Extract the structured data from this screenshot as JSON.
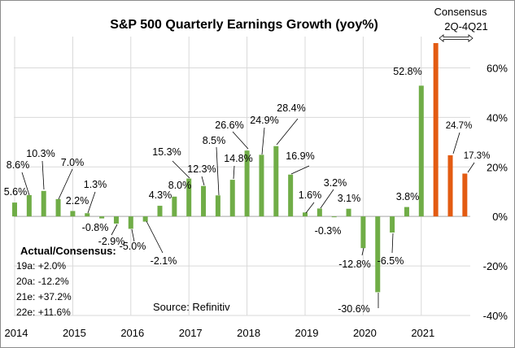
{
  "chart_data": {
    "type": "bar",
    "title": "S&P 500 Quarterly Earnings Growth (yoy%)",
    "xlabel": "",
    "ylabel": "",
    "ylim": [
      -40,
      70
    ],
    "yticks": [
      "-40%",
      "-20%",
      "0%",
      "20%",
      "40%",
      "60%"
    ],
    "ytick_values": [
      -40,
      -20,
      0,
      20,
      40,
      60
    ],
    "y_axis_side": "right",
    "grid": true,
    "xticks": [
      "2014",
      "2015",
      "2016",
      "2017",
      "2018",
      "2019",
      "2020",
      "2021"
    ],
    "colors": {
      "actual": "#70ad47",
      "consensus": "#e35b12"
    },
    "series": [
      {
        "values": [
          5.6,
          8.6,
          10.3,
          7.0,
          2.2,
          1.3,
          -0.8,
          -2.9,
          -5.0,
          -2.1,
          4.3,
          8.0,
          15.3,
          12.3,
          8.5,
          14.8,
          26.6,
          24.9,
          28.4,
          16.9,
          1.6,
          3.2,
          -0.3,
          3.1,
          -12.8,
          -30.6,
          -6.5,
          3.8,
          52.8,
          70,
          24.7,
          17.3
        ],
        "labels": [
          "5.6%",
          "8.6%",
          "10.3%",
          "7.0%",
          "2.2%",
          "1.3%",
          "-0.8%",
          "-2.9%",
          "-5.0%",
          "-2.1%",
          "4.3%",
          "8.0%",
          "15.3%",
          "12.3%",
          "8.5%",
          "14.8%",
          "26.6%",
          "24.9%",
          "28.4%",
          "16.9%",
          "1.6%",
          "3.2%",
          "-0.3%",
          "3.1%",
          "-12.8%",
          "-30.6%",
          "-6.5%",
          "3.8%",
          "52.8%",
          "",
          "24.7%",
          "17.3%"
        ],
        "kind": [
          "actual",
          "actual",
          "actual",
          "actual",
          "actual",
          "actual",
          "actual",
          "actual",
          "actual",
          "actual",
          "actual",
          "actual",
          "actual",
          "actual",
          "actual",
          "actual",
          "actual",
          "actual",
          "actual",
          "actual",
          "actual",
          "actual",
          "actual",
          "actual",
          "actual",
          "actual",
          "actual",
          "actual",
          "actual",
          "consensus",
          "consensus",
          "consensus"
        ]
      }
    ],
    "annotations": {
      "consensus_line1": "Consensus",
      "consensus_line2": "2Q-4Q21",
      "actual_consensus_heading": "Actual/Consensus:",
      "actual_consensus_rows": [
        "19a:  +2.0%",
        "20a:  -12.2%",
        "21e:  +37.2%",
        "22e:  +11.6%"
      ],
      "source": "Source:   Refinitiv"
    }
  }
}
